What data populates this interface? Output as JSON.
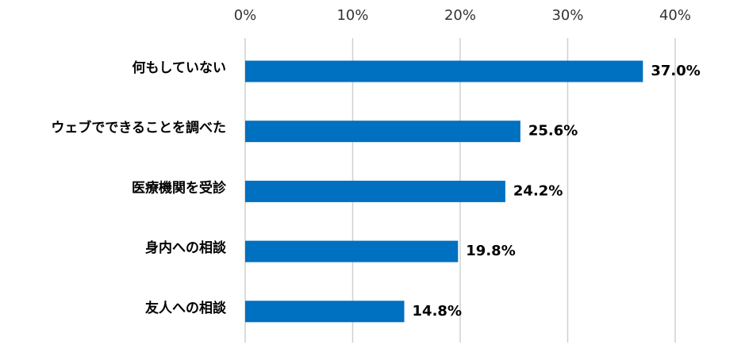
{
  "chart_data": {
    "type": "bar",
    "orientation": "horizontal",
    "categories": [
      "何もしていない",
      "ウェブでできることを調べた",
      "医療機関を受診",
      "身内への相談",
      "友人への相談"
    ],
    "values": [
      37.0,
      25.6,
      24.2,
      19.8,
      14.8
    ],
    "value_labels": [
      "37.0%",
      "25.6%",
      "24.2%",
      "19.8%",
      "14.8%"
    ],
    "color": "#0070c0",
    "xlim": [
      0,
      40
    ],
    "xticks": [
      {
        "value": 0,
        "label": "0%"
      },
      {
        "value": 10,
        "label": "10%"
      },
      {
        "value": 20,
        "label": "20%"
      },
      {
        "value": 30,
        "label": "30%"
      },
      {
        "value": 40,
        "label": "40%"
      }
    ],
    "grid": true
  }
}
